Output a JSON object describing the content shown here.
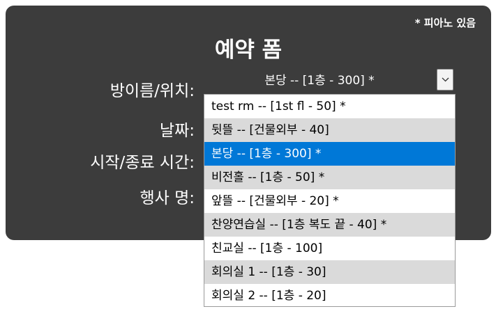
{
  "form": {
    "title": "예약 폼",
    "piano_note": "* 피아노 있음",
    "labels": {
      "room": "방이름/위치:",
      "date": "날짜:",
      "time": "시작/종료 시간:",
      "event": "행사 명:"
    },
    "room_select": {
      "selected_value": "본당 -- [1층 - 300] *",
      "arrow_icon": "chevron-down-icon",
      "options": [
        {
          "label": "test rm -- [1st fl - 50] *"
        },
        {
          "label": "뒷뜰 -- [건물외부 - 40]"
        },
        {
          "label": "본당 -- [1층 - 300] *"
        },
        {
          "label": "비전홀 -- [1층 - 50] *"
        },
        {
          "label": "앞뜰 -- [건물외부 - 20] *"
        },
        {
          "label": "찬양연습실 -- [1층 복도 끝 - 40] *"
        },
        {
          "label": "친교실 -- [1층 - 100]"
        },
        {
          "label": "회의실 1 -- [1층 - 30]"
        },
        {
          "label": "회의실 2 -- [1층 - 20]"
        }
      ],
      "selected_index": 2
    }
  },
  "colors": {
    "panel_bg": "#3c3c3c",
    "highlight": "#0078d7",
    "alt_row": "#dadada"
  }
}
